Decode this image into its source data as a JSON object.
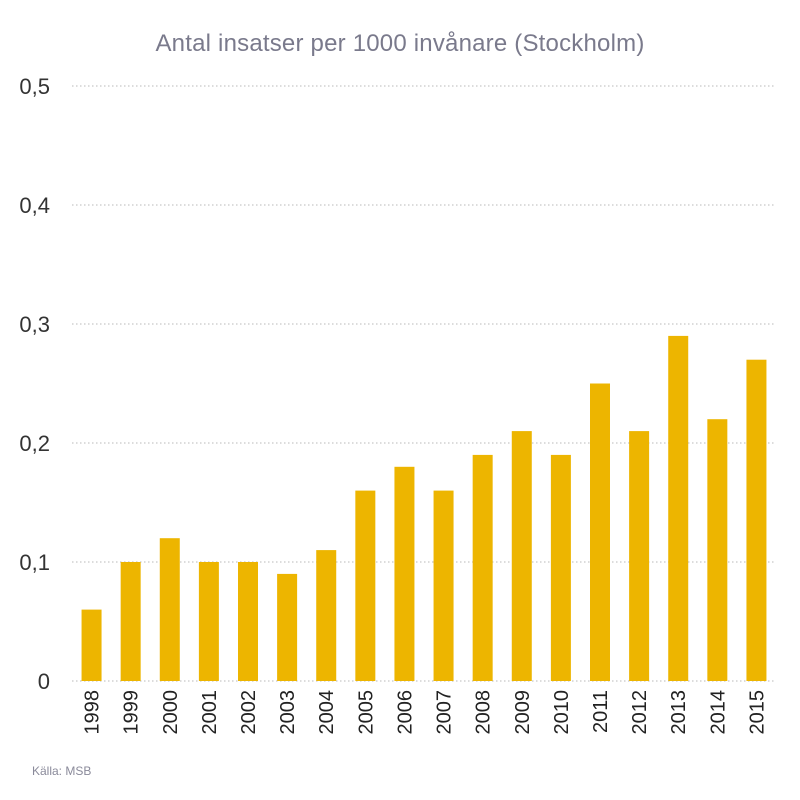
{
  "chart_data": {
    "type": "bar",
    "title": "Antal insatser per 1000 invånare (Stockholm)",
    "xlabel": "",
    "ylabel": "",
    "categories": [
      "1998",
      "1999",
      "2000",
      "2001",
      "2002",
      "2003",
      "2004",
      "2005",
      "2006",
      "2007",
      "2008",
      "2009",
      "2010",
      "2011",
      "2012",
      "2013",
      "2014",
      "2015"
    ],
    "values": [
      0.06,
      0.1,
      0.12,
      0.1,
      0.1,
      0.09,
      0.11,
      0.16,
      0.18,
      0.16,
      0.19,
      0.21,
      0.19,
      0.25,
      0.21,
      0.29,
      0.22,
      0.27
    ],
    "ylim": [
      0,
      0.5
    ],
    "yticks": [
      0,
      0.1,
      0.2,
      0.3,
      0.4,
      0.5
    ],
    "ytick_labels": [
      "0",
      "0,1",
      "0,2",
      "0,3",
      "0,4",
      "0,5"
    ],
    "grid": true,
    "grid_style": "dotted",
    "bar_color": "#EDB500",
    "grid_color": "#b8b8b8"
  },
  "source": "Källa: MSB"
}
